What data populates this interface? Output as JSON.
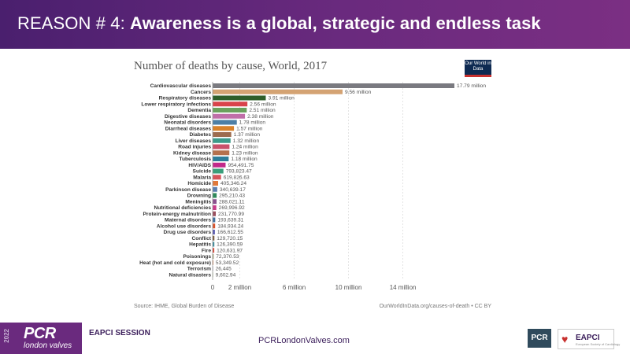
{
  "slide": {
    "title_prefix": "REASON # 4: ",
    "title_main": "Awareness is a global, strategic and endless task"
  },
  "chart_data": {
    "type": "bar",
    "orientation": "horizontal",
    "title": "Number of deaths by cause, World, 2017",
    "logo_text": "Our World in Data",
    "source_left": "Source: IHME, Global Burden of Disease",
    "source_right": "OurWorldInData.org/causes-of-death • CC BY",
    "xlim": [
      0,
      17790000
    ],
    "x_ticks": [
      0,
      2000000,
      6000000,
      10000000,
      14000000
    ],
    "x_tick_labels": [
      "0",
      "2 million",
      "6 million",
      "10 million",
      "14 million"
    ],
    "grid": true,
    "bars": [
      {
        "category": "Cardiovascular diseases",
        "value": 17790000,
        "label": "17.79 million",
        "color": "#7a7a80"
      },
      {
        "category": "Cancers",
        "value": 9560000,
        "label": "9.56 million",
        "color": "#d4a373"
      },
      {
        "category": "Respiratory diseases",
        "value": 3910000,
        "label": "3.91 million",
        "color": "#2e5e2a"
      },
      {
        "category": "Lower respiratory infections",
        "value": 2560000,
        "label": "2.56 million",
        "color": "#d9434b"
      },
      {
        "category": "Dementia",
        "value": 2510000,
        "label": "2.51 million",
        "color": "#6aa15c"
      },
      {
        "category": "Digestive diseases",
        "value": 2380000,
        "label": "2.38 million",
        "color": "#c06fa8"
      },
      {
        "category": "Neonatal disorders",
        "value": 1780000,
        "label": "1.78 million",
        "color": "#4d7fa6"
      },
      {
        "category": "Diarrheal diseases",
        "value": 1570000,
        "label": "1.57 million",
        "color": "#d9822b"
      },
      {
        "category": "Diabetes",
        "value": 1370000,
        "label": "1.37 million",
        "color": "#9c6b4e"
      },
      {
        "category": "Liver diseases",
        "value": 1320000,
        "label": "1.32 million",
        "color": "#3c9a8a"
      },
      {
        "category": "Road injuries",
        "value": 1240000,
        "label": "1.24 million",
        "color": "#c9506b"
      },
      {
        "category": "Kidney disease",
        "value": 1230000,
        "label": "1.23 million",
        "color": "#b5714e"
      },
      {
        "category": "Tuberculosis",
        "value": 1180000,
        "label": "1.18 million",
        "color": "#2e7d9a"
      },
      {
        "category": "HIV/AIDS",
        "value": 954491.75,
        "label": "954,491.75",
        "color": "#c2298a"
      },
      {
        "category": "Suicide",
        "value": 793823.47,
        "label": "793,823.47",
        "color": "#3a9e7a"
      },
      {
        "category": "Malaria",
        "value": 619826.63,
        "label": "619,826.63",
        "color": "#d6545a"
      },
      {
        "category": "Homicide",
        "value": 405346.24,
        "label": "405,346.24",
        "color": "#e0793a"
      },
      {
        "category": "Parkinson disease",
        "value": 340639.17,
        "label": "340,639.17",
        "color": "#5b7fb0"
      },
      {
        "category": "Drowning",
        "value": 295210.43,
        "label": "295,210.43",
        "color": "#2f8a5a"
      },
      {
        "category": "Meningitis",
        "value": 288021.11,
        "label": "288,021.11",
        "color": "#8a4f8e"
      },
      {
        "category": "Nutritional deficiencies",
        "value": 269996.92,
        "label": "269,996.92",
        "color": "#c83a8a"
      },
      {
        "category": "Protein-energy malnutrition",
        "value": 231770.99,
        "label": "231,770.99",
        "color": "#9a4f5e"
      },
      {
        "category": "Maternal disorders",
        "value": 193639.31,
        "label": "193,639.31",
        "color": "#3f6f9e"
      },
      {
        "category": "Alcohol use disorders",
        "value": 184934.24,
        "label": "184,934.24",
        "color": "#d9532b"
      },
      {
        "category": "Drug use disorders",
        "value": 166612.55,
        "label": "166,612.55",
        "color": "#5a5ab0"
      },
      {
        "category": "Conflict",
        "value": 129720.15,
        "label": "129,720.15",
        "color": "#7a5a3a"
      },
      {
        "category": "Hepatitis",
        "value": 126390.59,
        "label": "126,390.59",
        "color": "#3a8a9a"
      },
      {
        "category": "Fire",
        "value": 120631.97,
        "label": "120,631.97",
        "color": "#d94a3a"
      },
      {
        "category": "Poisonings",
        "value": 72370.53,
        "label": "72,370.53",
        "color": "#8a8a5a"
      },
      {
        "category": "Heat (hot and cold exposure)",
        "value": 53349.52,
        "label": "53,349.52",
        "color": "#c26a3a"
      },
      {
        "category": "Terrorism",
        "value": 26445,
        "label": "26,445",
        "color": "#5a5a7a"
      },
      {
        "category": "Natural disasters",
        "value": 9602.94,
        "label": "9,602.94",
        "color": "#7a9a5a"
      }
    ]
  },
  "footer": {
    "year": "2022",
    "brand": "PCR",
    "brand_sub": "london valves",
    "session": "EAPCI SESSION",
    "url": "PCRLondonValves.com",
    "pcr_logo": "PCR",
    "eapci_name": "EAPCI",
    "eapci_sub": "European Society of Cardiology"
  }
}
